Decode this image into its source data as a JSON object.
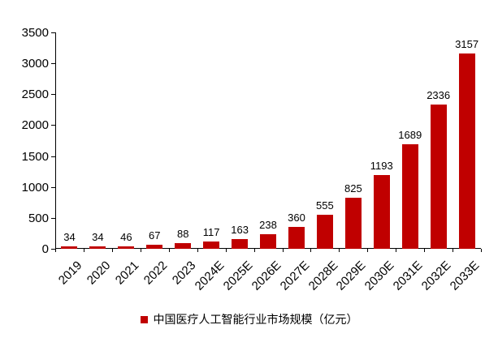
{
  "chart_data": {
    "type": "bar",
    "categories": [
      "2019",
      "2020",
      "2021",
      "2022",
      "2023",
      "2024E",
      "2025E",
      "2026E",
      "2027E",
      "2028E",
      "2029E",
      "2030E",
      "2031E",
      "2032E",
      "2033E"
    ],
    "values": [
      34,
      34,
      46,
      67,
      88,
      117,
      163,
      238,
      360,
      555,
      825,
      1193,
      1689,
      2336,
      3157
    ],
    "title": "",
    "xlabel": "",
    "ylabel": "",
    "ylim": [
      0,
      3500
    ],
    "ytick_step": 500,
    "yticks": [
      0,
      500,
      1000,
      1500,
      2000,
      2500,
      3000,
      3500
    ],
    "grid": false,
    "bar_color": "#C00000",
    "legend_position": "bottom",
    "legend": [
      "中国医疗人工智能行业市场规模（亿元）"
    ]
  }
}
